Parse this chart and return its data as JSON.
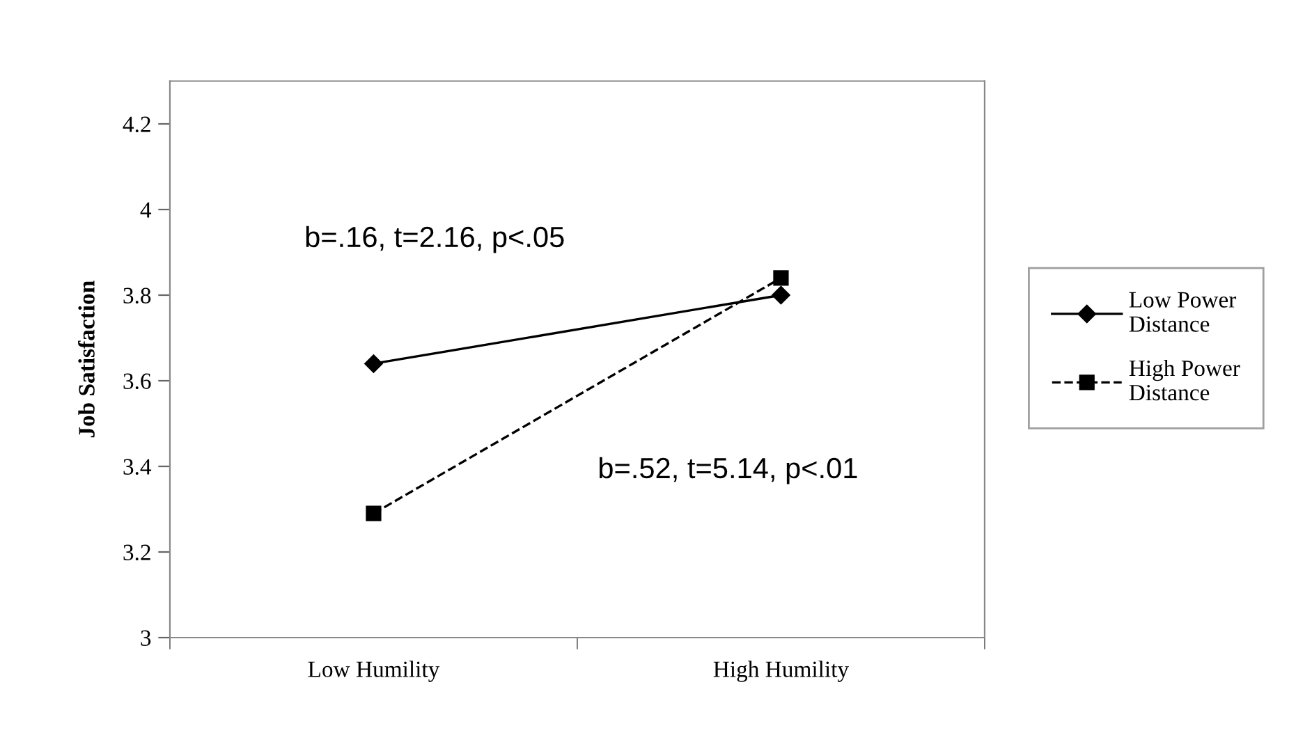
{
  "chart_data": {
    "type": "line",
    "ylabel": "Job Satisfaction",
    "categories": [
      "Low Humility",
      "High Humility"
    ],
    "series": [
      {
        "name": "Low Power Distance",
        "color": "#000000",
        "values": [
          3.64,
          3.8
        ],
        "marker": "diamond",
        "line_style": "solid"
      },
      {
        "name": "High Power Distance",
        "color": "#000000",
        "values": [
          3.29,
          3.84
        ],
        "marker": "square",
        "line_style": "dashed"
      }
    ],
    "ylim": [
      3,
      4.3
    ],
    "yticks": [
      3,
      3.2,
      3.4,
      3.6,
      3.8,
      4,
      4.2
    ],
    "annotations": [
      "b=.16, t=2.16, p<.05",
      "b=.52, t=5.14, p<.01"
    ],
    "grid": false,
    "legend": "right"
  }
}
